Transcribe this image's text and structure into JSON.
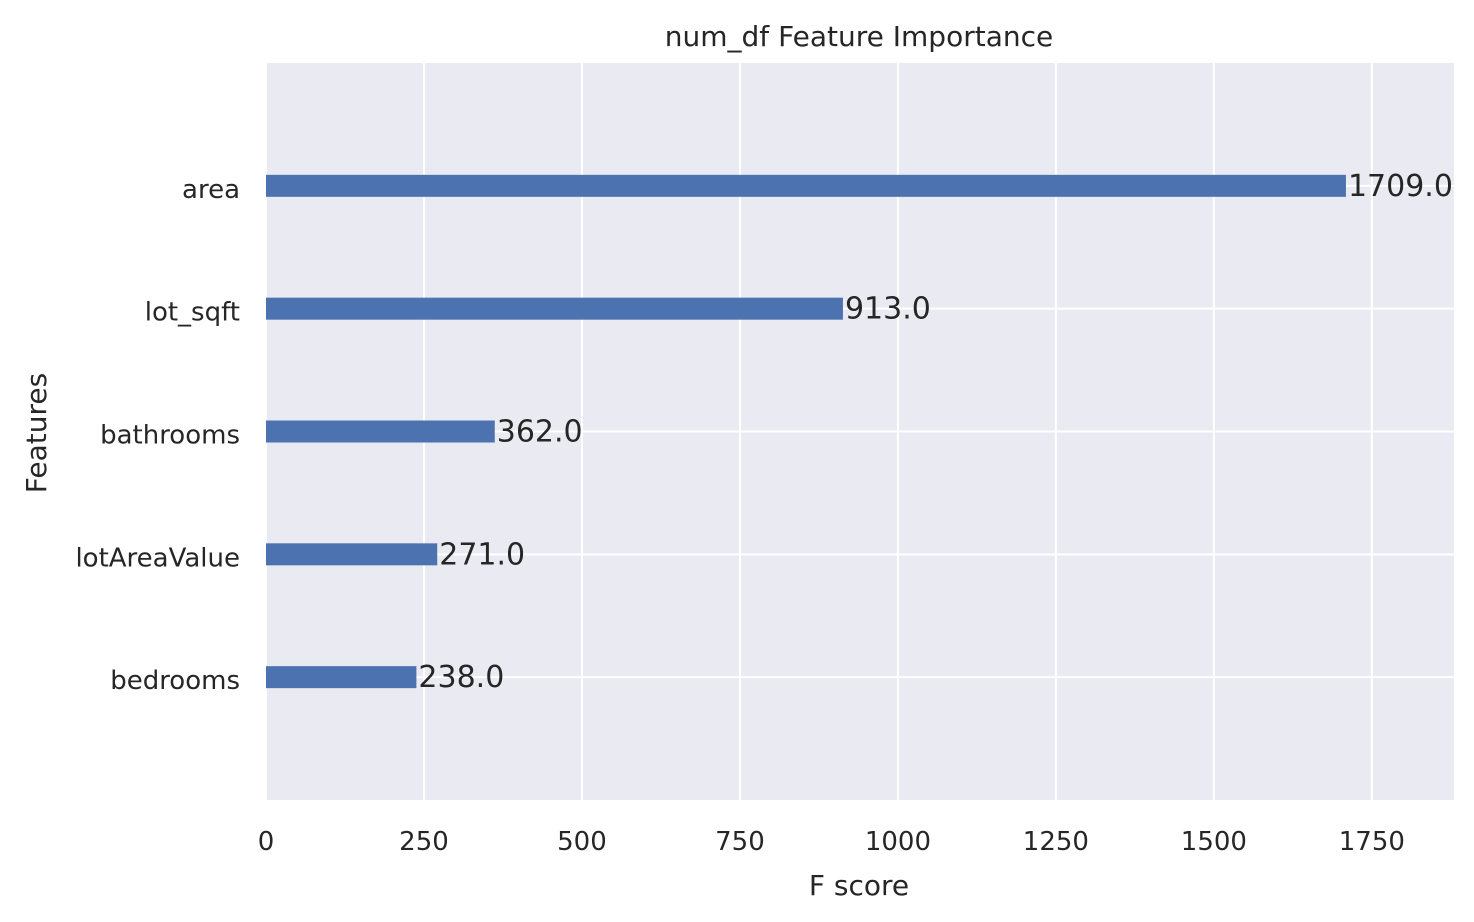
{
  "chart_data": {
    "type": "bar",
    "orientation": "horizontal",
    "title": "num_df Feature Importance",
    "xlabel": "F score",
    "ylabel": "Features",
    "categories": [
      "bedrooms",
      "lotAreaValue",
      "bathrooms",
      "lot_sqft",
      "area"
    ],
    "values": [
      238,
      271,
      362,
      913,
      1709
    ],
    "data_labels": [
      "238.0",
      "271.0",
      "362.0",
      "913.0",
      "1709.0"
    ],
    "xlim": [
      0,
      1880
    ],
    "xticks": [
      0,
      250,
      500,
      750,
      1000,
      1250,
      1500,
      1750
    ],
    "xtick_labels": [
      "0",
      "250",
      "500",
      "750",
      "1000",
      "1250",
      "1500",
      "1750"
    ],
    "grid": true,
    "colors": {
      "bar": "#4c72b0",
      "plot_background": "#eaeaf2",
      "grid": "#ffffff",
      "text": "#262626"
    }
  }
}
